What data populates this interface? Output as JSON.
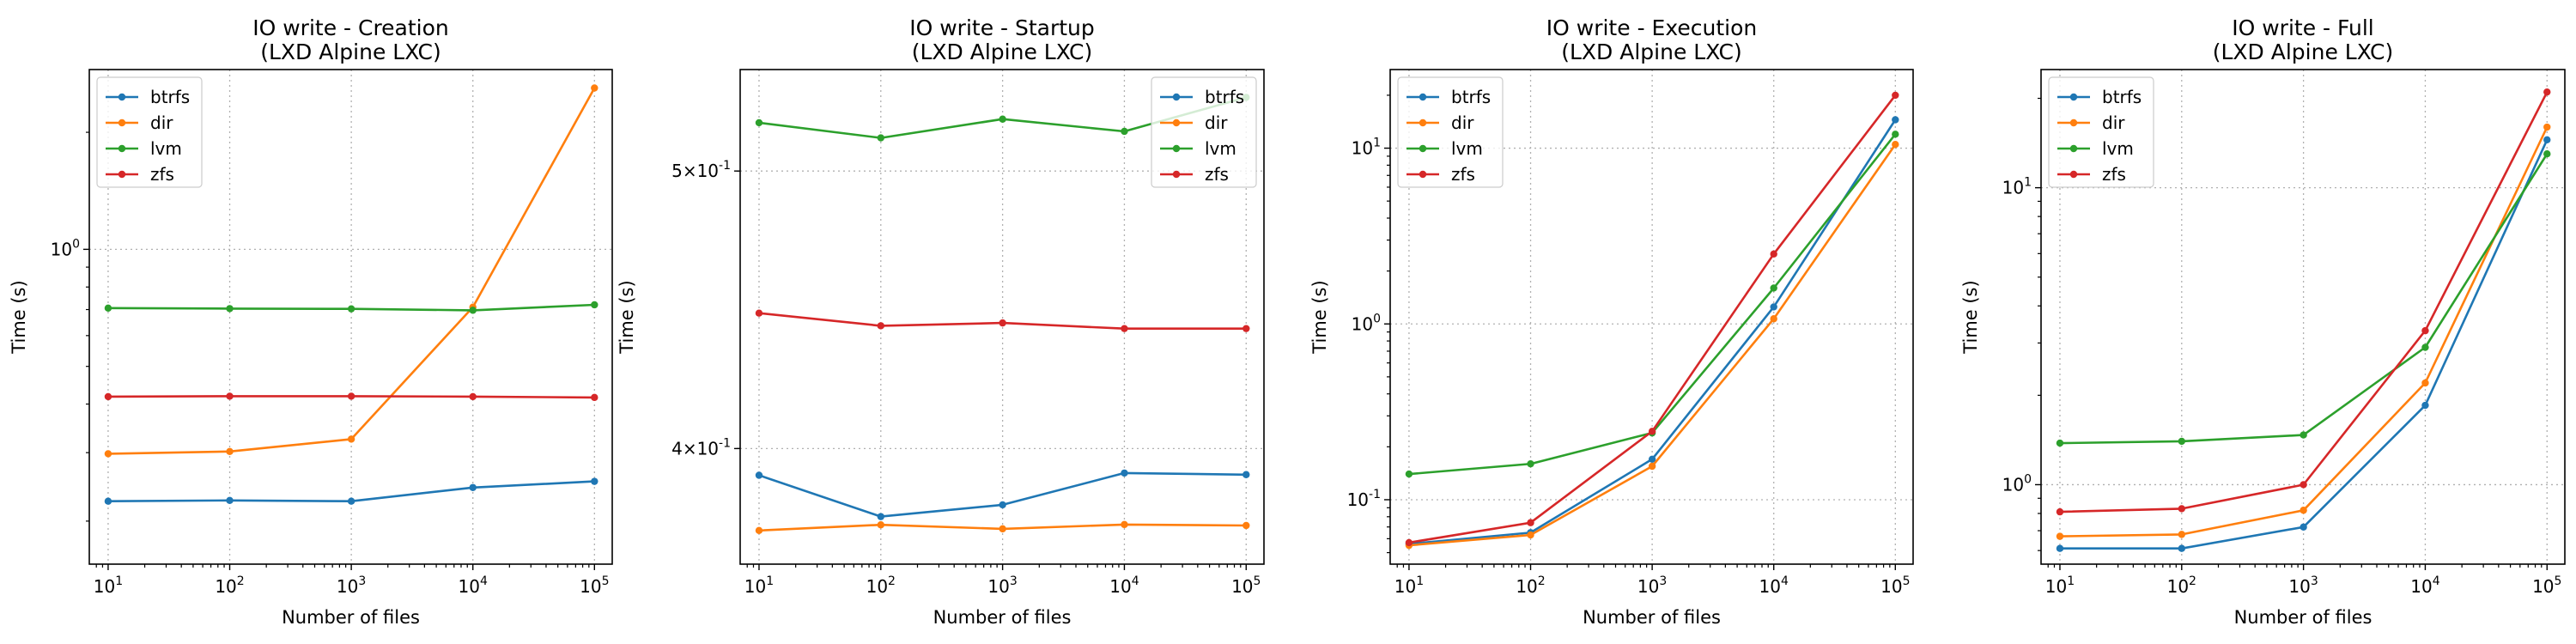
{
  "chart_data": [
    {
      "type": "line",
      "title": "IO write - Creation",
      "subtitle": "(LXD Alpine LXC)",
      "xlabel": "Number of files",
      "ylabel": "Time (s)",
      "xscale": "log",
      "yscale": "log",
      "x": [
        10,
        100,
        1000,
        10000,
        100000
      ],
      "xlim": [
        7,
        140000
      ],
      "ylim": [
        0.155,
        2.9
      ],
      "yticks": [
        {
          "value": 1.0,
          "label": "10^0"
        }
      ],
      "grid": true,
      "legend": "top-left",
      "series": [
        {
          "name": "btrfs",
          "color": "#1f77b4",
          "values": [
            0.225,
            0.226,
            0.225,
            0.244,
            0.253
          ]
        },
        {
          "name": "dir",
          "color": "#ff7f0e",
          "values": [
            0.298,
            0.302,
            0.325,
            0.71,
            2.6
          ]
        },
        {
          "name": "lvm",
          "color": "#2ca02c",
          "values": [
            0.706,
            0.704,
            0.703,
            0.697,
            0.72
          ]
        },
        {
          "name": "zfs",
          "color": "#d62728",
          "values": [
            0.418,
            0.419,
            0.419,
            0.418,
            0.416
          ]
        }
      ]
    },
    {
      "type": "line",
      "title": "IO write - Startup",
      "subtitle": "(LXD Alpine LXC)",
      "xlabel": "Number of files",
      "ylabel": "Time (s)",
      "xscale": "log",
      "yscale": "log",
      "x": [
        10,
        100,
        1000,
        10000,
        100000
      ],
      "xlim": [
        7,
        140000
      ],
      "ylim": [
        0.3645,
        0.5425
      ],
      "yticks": [
        {
          "value": 0.5,
          "label": "5×10^-1"
        },
        {
          "value": 0.4,
          "label": "4×10^-1"
        }
      ],
      "grid": true,
      "legend": "top-right",
      "series": [
        {
          "name": "btrfs",
          "color": "#1f77b4",
          "values": [
            0.3915,
            0.3787,
            0.3823,
            0.3922,
            0.3917
          ]
        },
        {
          "name": "dir",
          "color": "#ff7f0e",
          "values": [
            0.3745,
            0.3762,
            0.375,
            0.3763,
            0.376
          ]
        },
        {
          "name": "lvm",
          "color": "#2ca02c",
          "values": [
            0.5198,
            0.5135,
            0.5213,
            0.5162,
            0.5305
          ]
        },
        {
          "name": "zfs",
          "color": "#d62728",
          "values": [
            0.446,
            0.4415,
            0.4425,
            0.4405,
            0.4405
          ]
        }
      ]
    },
    {
      "type": "line",
      "title": "IO write - Execution",
      "subtitle": "(LXD Alpine LXC)",
      "xlabel": "Number of files",
      "ylabel": "Time (s)",
      "xscale": "log",
      "yscale": "log",
      "x": [
        10,
        100,
        1000,
        10000,
        100000
      ],
      "xlim": [
        7,
        140000
      ],
      "ylim": [
        0.043,
        28
      ],
      "yticks": [
        {
          "value": 10,
          "label": "10^1"
        },
        {
          "value": 1,
          "label": "10^0"
        },
        {
          "value": 0.1,
          "label": "10^-1"
        }
      ],
      "grid": true,
      "legend": "top-left",
      "series": [
        {
          "name": "btrfs",
          "color": "#1f77b4",
          "values": [
            0.056,
            0.065,
            0.17,
            1.25,
            14.5
          ]
        },
        {
          "name": "dir",
          "color": "#ff7f0e",
          "values": [
            0.055,
            0.063,
            0.155,
            1.07,
            10.5
          ]
        },
        {
          "name": "lvm",
          "color": "#2ca02c",
          "values": [
            0.14,
            0.16,
            0.24,
            1.6,
            12.0
          ]
        },
        {
          "name": "zfs",
          "color": "#d62728",
          "values": [
            0.057,
            0.074,
            0.245,
            2.5,
            20.0
          ]
        }
      ]
    },
    {
      "type": "line",
      "title": "IO write - Full",
      "subtitle": "(LXD Alpine LXC)",
      "xlabel": "Number of files",
      "ylabel": "Time (s)",
      "xscale": "log",
      "yscale": "log",
      "x": [
        10,
        100,
        1000,
        10000,
        100000
      ],
      "xlim": [
        7,
        140000
      ],
      "ylim": [
        0.54,
        25.0
      ],
      "yticks": [
        {
          "value": 10,
          "label": "10^1"
        },
        {
          "value": 1,
          "label": "10^0"
        }
      ],
      "grid": true,
      "legend": "top-left",
      "series": [
        {
          "name": "btrfs",
          "color": "#1f77b4",
          "values": [
            0.61,
            0.61,
            0.72,
            1.85,
            14.5
          ]
        },
        {
          "name": "dir",
          "color": "#ff7f0e",
          "values": [
            0.67,
            0.68,
            0.82,
            2.2,
            16.0
          ]
        },
        {
          "name": "lvm",
          "color": "#2ca02c",
          "values": [
            1.38,
            1.4,
            1.47,
            2.9,
            13.0
          ]
        },
        {
          "name": "zfs",
          "color": "#d62728",
          "values": [
            0.81,
            0.83,
            1.0,
            3.3,
            21.0
          ]
        }
      ]
    }
  ]
}
